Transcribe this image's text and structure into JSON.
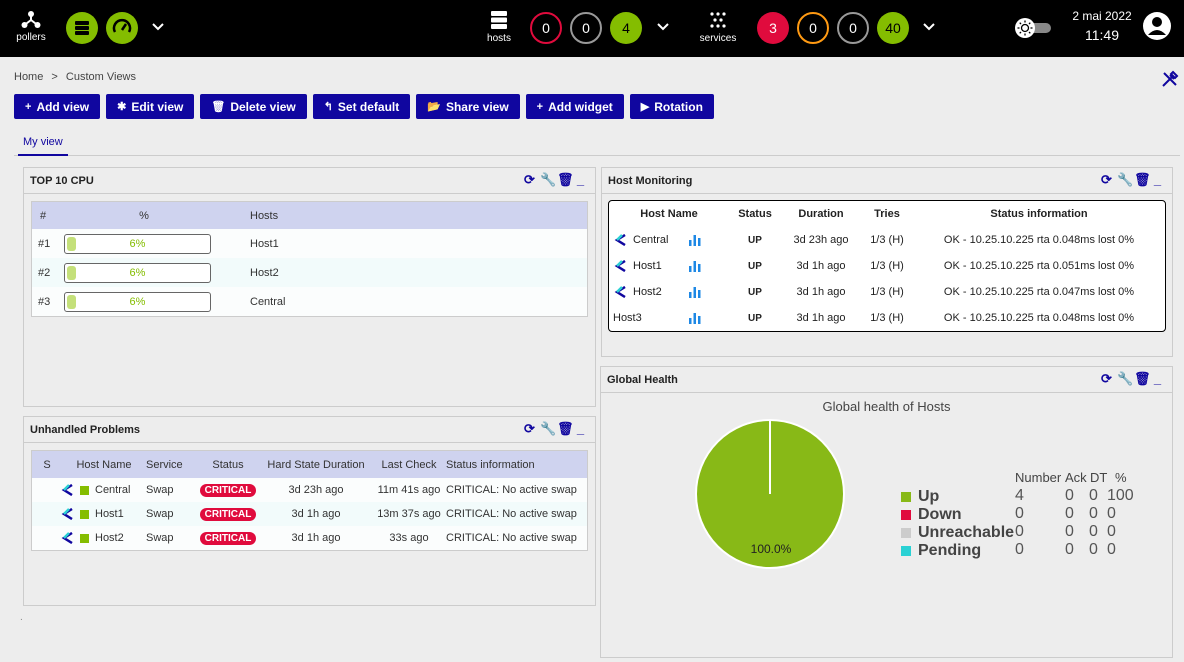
{
  "topbar": {
    "pollers_label": "pollers",
    "hosts_label": "hosts",
    "services_label": "services",
    "host_counts": [
      "0",
      "0",
      "4"
    ],
    "service_counts": [
      "3",
      "0",
      "0",
      "40"
    ],
    "date": "2 mai 2022",
    "time": "11:49",
    "colors": {
      "green": "#84bd00",
      "red": "#e00b3d",
      "orange": "#ff9a13"
    }
  },
  "breadcrumb": {
    "home": "Home",
    "separator": ">",
    "current": "Custom Views"
  },
  "toolbar": {
    "buttons": [
      {
        "icon": "+",
        "label": "Add view"
      },
      {
        "icon": "✱",
        "label": "Edit view"
      },
      {
        "icon": "🗑",
        "label": "Delete view"
      },
      {
        "icon": "↰",
        "label": "Set default"
      },
      {
        "icon": "📂",
        "label": "Share view"
      },
      {
        "icon": "+",
        "label": "Add widget"
      },
      {
        "icon": "▶",
        "label": "Rotation"
      }
    ]
  },
  "tabs": {
    "active": "My view"
  },
  "cpu": {
    "title": "TOP 10 CPU",
    "headers": [
      "#",
      "%",
      "Hosts"
    ],
    "rows": [
      {
        "rank": "#1",
        "pct": "6%",
        "value": 0.06,
        "host": "Host1"
      },
      {
        "rank": "#2",
        "pct": "6%",
        "value": 0.06,
        "host": "Host2"
      },
      {
        "rank": "#3",
        "pct": "6%",
        "value": 0.06,
        "host": "Central"
      }
    ]
  },
  "hm": {
    "title": "Host Monitoring",
    "headers": [
      "Host Name",
      "Status",
      "Duration",
      "Tries",
      "Status information"
    ],
    "rows": [
      {
        "name": "Central",
        "status": "UP",
        "duration": "3d 23h ago",
        "tries": "1/3 (H)",
        "info": "OK - 10.25.10.225 rta 0.048ms lost 0%",
        "logo": true
      },
      {
        "name": "Host1",
        "status": "UP",
        "duration": "3d 1h ago",
        "tries": "1/3 (H)",
        "info": "OK - 10.25.10.225 rta 0.051ms lost 0%",
        "logo": true
      },
      {
        "name": "Host2",
        "status": "UP",
        "duration": "3d 1h ago",
        "tries": "1/3 (H)",
        "info": "OK - 10.25.10.225 rta 0.047ms lost 0%",
        "logo": true
      },
      {
        "name": "Host3",
        "status": "UP",
        "duration": "3d 1h ago",
        "tries": "1/3 (H)",
        "info": "OK - 10.25.10.225 rta 0.048ms lost 0%",
        "logo": false
      }
    ]
  },
  "up": {
    "title": "Unhandled Problems",
    "headers": [
      "S",
      "Host Name",
      "Service",
      "Status",
      "Hard State Duration",
      "Last Check",
      "Status information"
    ],
    "rows": [
      {
        "host": "Central",
        "service": "Swap",
        "status": "CRITICAL",
        "duration": "3d 23h ago",
        "last": "11m 41s ago",
        "info": "CRITICAL: No active swap"
      },
      {
        "host": "Host1",
        "service": "Swap",
        "status": "CRITICAL",
        "duration": "3d 1h ago",
        "last": "13m 37s ago",
        "info": "CRITICAL: No active swap"
      },
      {
        "host": "Host2",
        "service": "Swap",
        "status": "CRITICAL",
        "duration": "3d 1h ago",
        "last": "33s ago",
        "info": "CRITICAL: No active swap"
      }
    ]
  },
  "gh": {
    "title": "Global Health",
    "chart_title": "Global health of Hosts",
    "pie_label": "100.0%",
    "legend_headers": [
      "Number",
      "Ack",
      "DT",
      "%"
    ],
    "legend": [
      {
        "name": "Up",
        "color": "#88b917",
        "number": "4",
        "ack": "0",
        "dt": "0",
        "pct": "100"
      },
      {
        "name": "Down",
        "color": "#e00b3d",
        "number": "0",
        "ack": "0",
        "dt": "0",
        "pct": "0"
      },
      {
        "name": "Unreachable",
        "color": "#cccccc",
        "number": "0",
        "ack": "0",
        "dt": "0",
        "pct": "0"
      },
      {
        "name": "Pending",
        "color": "#2ad1d4",
        "number": "0",
        "ack": "0",
        "dt": "0",
        "pct": "0"
      }
    ]
  },
  "chart_data": {
    "type": "pie",
    "title": "Global health of Hosts",
    "categories": [
      "Up",
      "Down",
      "Unreachable",
      "Pending"
    ],
    "values": [
      4,
      0,
      0,
      0
    ],
    "percent_label": "100.0%",
    "legend": "right"
  }
}
